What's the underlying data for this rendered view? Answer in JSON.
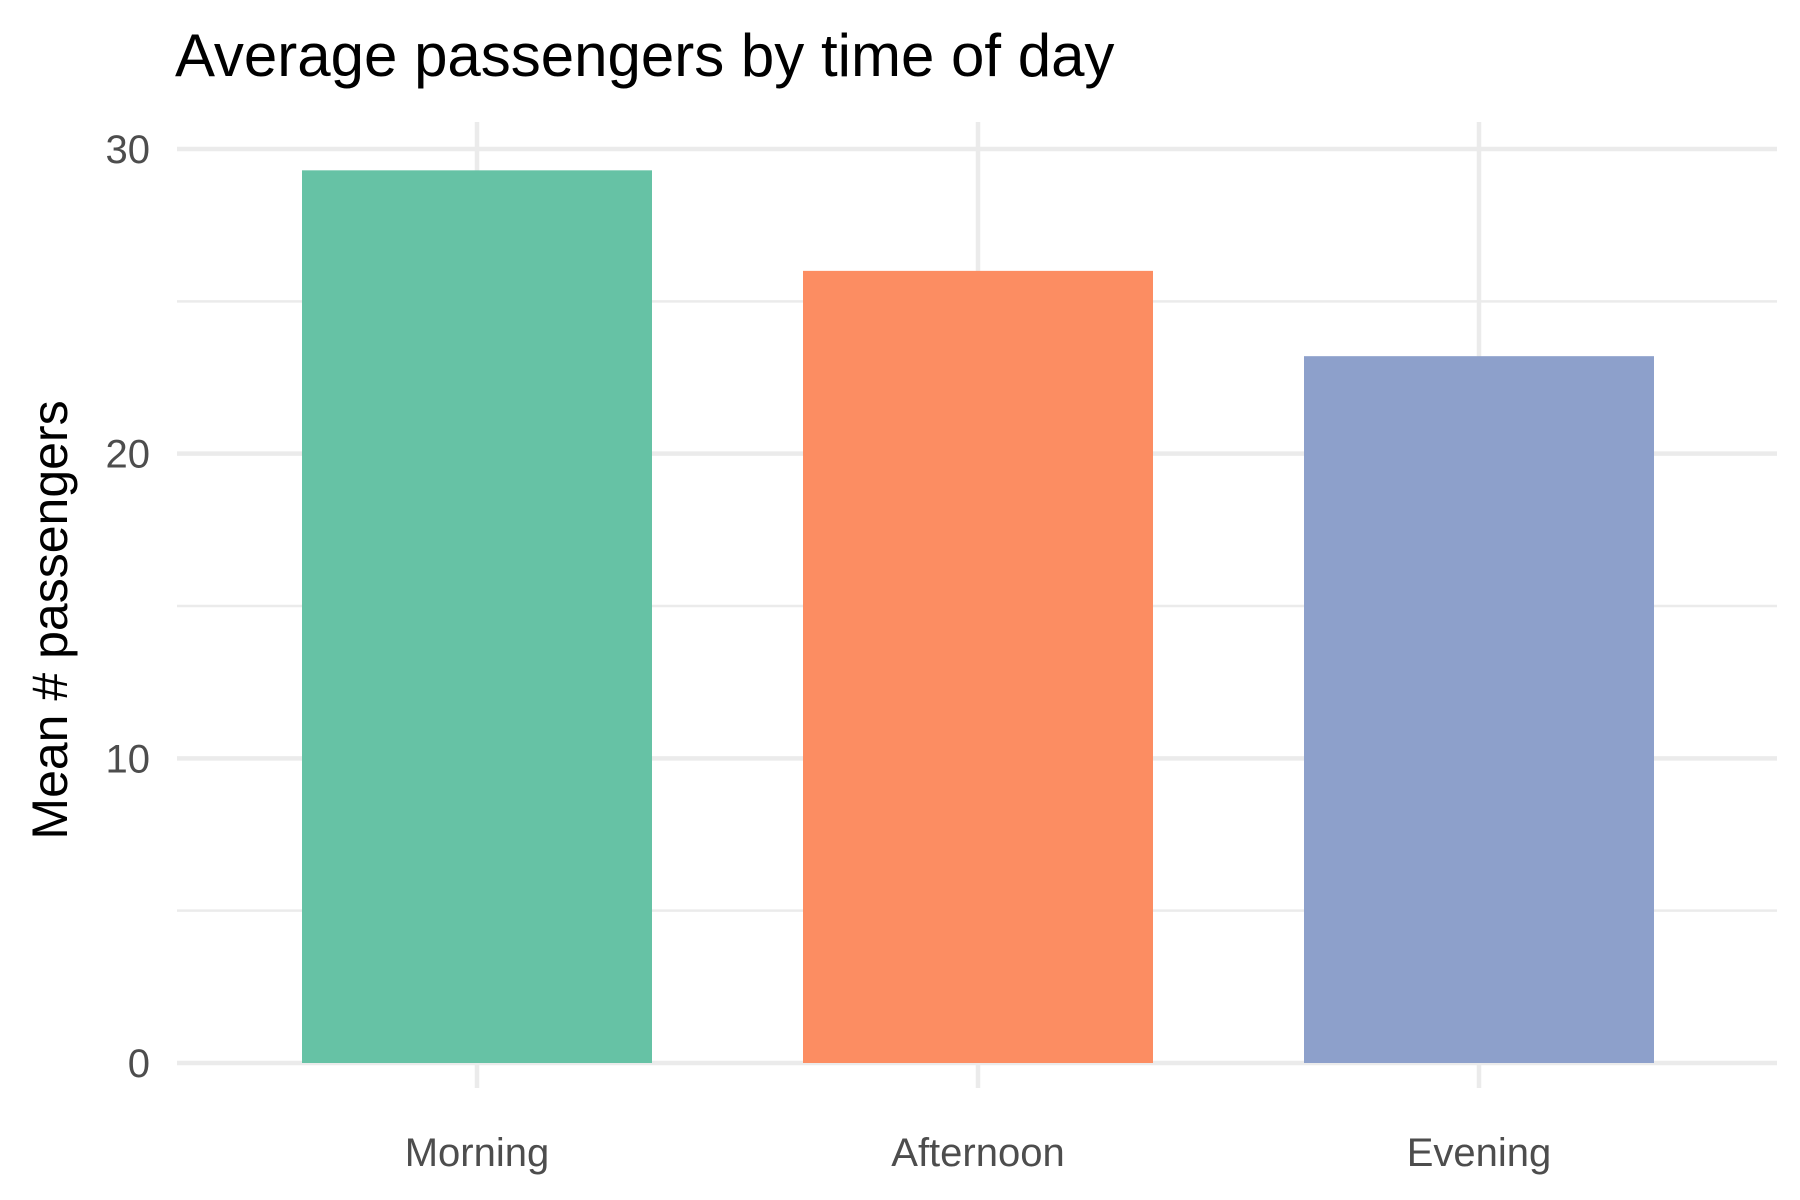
{
  "chart_data": {
    "type": "bar",
    "title": "Average passengers by time of day",
    "xlabel": "",
    "ylabel": "Mean # passengers",
    "categories": [
      "Morning",
      "Afternoon",
      "Evening"
    ],
    "values": [
      29.3,
      26.0,
      23.2
    ],
    "colors": [
      "#66c2a5",
      "#fc8d62",
      "#8da0cb"
    ],
    "ylim": [
      0,
      30
    ],
    "yticks": [
      0,
      10,
      20,
      30
    ],
    "ytick_labels": [
      "0",
      "10",
      "20",
      "30"
    ],
    "yminor": [
      5,
      15,
      25
    ],
    "grid": true,
    "legend": "none"
  }
}
